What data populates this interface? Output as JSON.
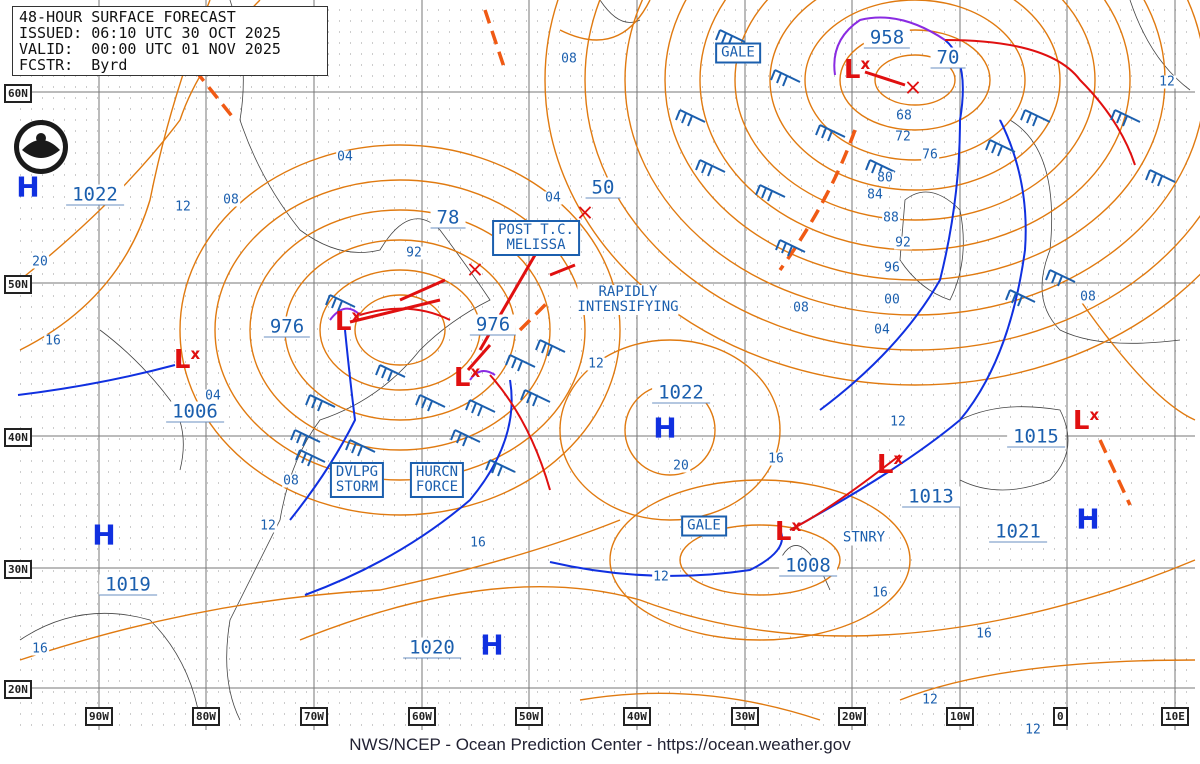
{
  "header": {
    "title": "48-HOUR SURFACE FORECAST",
    "issued": "ISSUED: 06:10 UTC 30 OCT 2025",
    "valid": "VALID:  00:00 UTC 01 NOV 2025",
    "forecaster": "FCSTR:  Byrd"
  },
  "footer": "NWS/NCEP - Ocean Prediction Center - https://ocean.weather.gov",
  "logo": "NOAA",
  "latitudes": [
    "60N",
    "50N",
    "40N",
    "30N",
    "20N"
  ],
  "longitudes": [
    "90W",
    "80W",
    "70W",
    "60W",
    "50W",
    "40W",
    "30W",
    "20W",
    "10W",
    "0",
    "10E"
  ],
  "pressure_centers": [
    "1022",
    "976",
    "78",
    "50",
    "976",
    "958",
    "70",
    "1022",
    "1006",
    "1019",
    "1020",
    "1008",
    "1013",
    "1015",
    "1021"
  ],
  "isobar_labels": [
    "04",
    "08",
    "12",
    "20",
    "16",
    "04",
    "08",
    "12",
    "92",
    "04",
    "08",
    "12",
    "08",
    "04",
    "00",
    "96",
    "92",
    "88",
    "84",
    "80",
    "76",
    "72",
    "68",
    "12",
    "08",
    "12",
    "16",
    "20",
    "16",
    "12",
    "16",
    "16",
    "16",
    "12",
    "12"
  ],
  "highs": [
    "H",
    "H",
    "H",
    "H",
    "H"
  ],
  "lows": [
    "L",
    "L",
    "L",
    "L",
    "L",
    "L",
    "L"
  ],
  "low_marker": "x",
  "forecast_positions": [
    "×",
    "×",
    "×"
  ],
  "annotations": {
    "gale_1": "GALE",
    "post_tc": "POST T.C.\nMELISSA",
    "rapidly": "RAPIDLY\nINTENSIFYING",
    "dvlpg": "DVLPG\nSTORM",
    "hurcn": "HURCN\nFORCE",
    "gale_2": "GALE",
    "stnry": "STNRY"
  },
  "colors": {
    "isobar": "#e07a10",
    "label": "#1b5fae",
    "cold_front": "#1030e0",
    "warm_front": "#e01010",
    "occluded": "#8a2be2",
    "trough": "#f05a14",
    "high": "#1030e0",
    "low": "#e01010"
  }
}
